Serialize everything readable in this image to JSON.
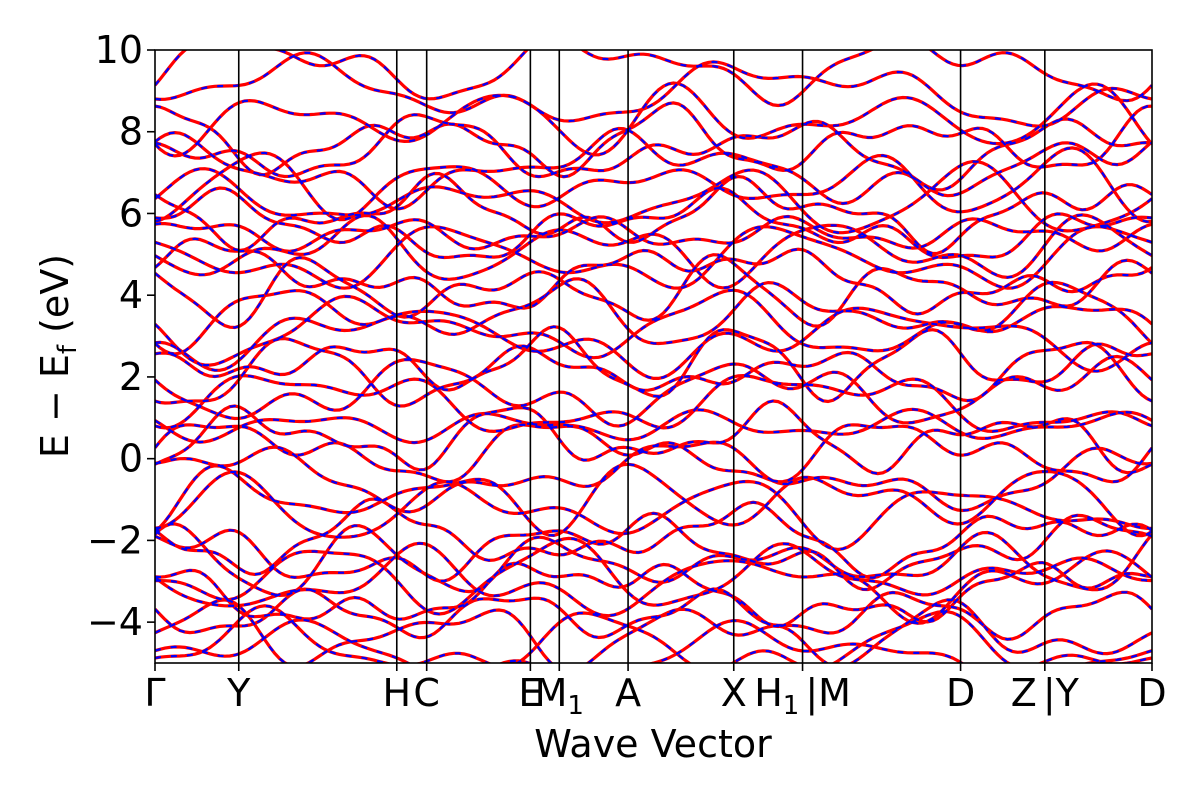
{
  "chart_data": {
    "type": "line",
    "title": "",
    "xlabel": "Wave Vector",
    "ylabel": {
      "main": "E − E",
      "sub": "f",
      "unit": " (eV)"
    },
    "ylim": [
      -5,
      10
    ],
    "yticks": [
      {
        "value": 10,
        "label": "10"
      },
      {
        "value": 8,
        "label": "8"
      },
      {
        "value": 6,
        "label": "6"
      },
      {
        "value": 4,
        "label": "4"
      },
      {
        "value": 2,
        "label": "2"
      },
      {
        "value": 0,
        "label": "0"
      },
      {
        "value": -2,
        "label": "−2"
      },
      {
        "value": -4,
        "label": "−4"
      }
    ],
    "xlim": [
      0,
      1
    ],
    "kpoints": [
      {
        "value": 0.0,
        "label": "Γ"
      },
      {
        "value": 0.084,
        "label": "Y"
      },
      {
        "value": 0.2425,
        "label": "H"
      },
      {
        "value": 0.2725,
        "label": "C"
      },
      {
        "value": 0.3765,
        "label": "E"
      },
      {
        "value": 0.4055,
        "label": "M",
        "sub": "1"
      },
      {
        "value": 0.4745,
        "label": "A"
      },
      {
        "value": 0.5805,
        "label": "X"
      },
      {
        "value": 0.6495,
        "label": "H",
        "sub": "1",
        "suffix": "|M"
      },
      {
        "value": 0.808,
        "label": "D"
      },
      {
        "value": 0.8925,
        "label": "Z",
        "suffix": "|Y"
      },
      {
        "value": 1.0,
        "label": "D"
      }
    ],
    "grid": false,
    "legend": "none",
    "series": [
      {
        "color": "#ff0000",
        "style": "solid",
        "band_count": 38
      },
      {
        "color": "#0000ff",
        "style": "dashed",
        "band_count": 38
      }
    ],
    "band_anchor_energies": [
      -4.85,
      -4.6,
      -4.3,
      -3.8,
      -3.3,
      -3.05,
      -2.85,
      -2.55,
      -2.25,
      -1.95,
      -1.25,
      -0.95,
      -0.4,
      0.2,
      0.5,
      0.8,
      1.35,
      1.65,
      2.1,
      2.35,
      2.95,
      3.2,
      3.55,
      4.1,
      4.45,
      4.9,
      5.1,
      5.5,
      5.65,
      6.0,
      6.3,
      6.7,
      7.1,
      7.55,
      7.75,
      8.3,
      8.95,
      9.6
    ]
  }
}
